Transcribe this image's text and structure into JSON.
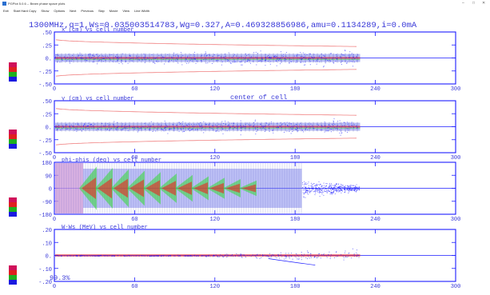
{
  "window": {
    "title": "PGPlot 5.0.6 -- Beam phase space plots",
    "controls": [
      "–",
      "□",
      "✕"
    ]
  },
  "menu": [
    "Exit",
    "Start Hard Copy",
    "Show",
    "Options",
    "Next",
    "Previous",
    "Skip",
    "Movie",
    "View",
    "Line Width"
  ],
  "plot": {
    "header": "1300MHz,q=1,Ws=0.035003514783,Wg=0.327,A=0.469328856986,amu=0.1134289,i=0.0mA",
    "center_label": "center of cell",
    "progress_label": "99.3%",
    "x_ticks": [
      "0",
      "60",
      "120",
      "180",
      "240",
      "300"
    ],
    "x_range": [
      0,
      300
    ],
    "particles_end_cell": 228,
    "panels": [
      {
        "id": "x",
        "label": "x (cm) vs cell number",
        "y_ticks": [
          ".50",
          ".25",
          "0.",
          "-.25",
          "-.50"
        ],
        "y_range": [
          -0.5,
          0.5
        ]
      },
      {
        "id": "y",
        "label": "y (cm) vs cell number",
        "y_ticks": [
          ".50",
          ".25",
          "0.",
          "-.25",
          "-.50"
        ],
        "y_range": [
          -0.5,
          0.5
        ]
      },
      {
        "id": "phi",
        "label": "phi-phis (deg) vs cell number",
        "y_ticks": [
          "180",
          "90",
          "0",
          "-90",
          "-180"
        ],
        "y_range": [
          -180,
          180
        ]
      },
      {
        "id": "w",
        "label": "W-Ws (MeV) vs cell number",
        "y_ticks": [
          ".20",
          ".10",
          "0.",
          "-.10",
          "-.20"
        ],
        "y_range": [
          -0.2,
          0.2
        ]
      }
    ]
  },
  "colors": {
    "axis": "#1c1cff",
    "text": "#3838d8",
    "beam": "#7f86ee",
    "envelope": "#f08080",
    "core_red": "#ee2222",
    "core_green": "#33dd33",
    "legend": [
      "#d0105a",
      "#e02020",
      "#20b020",
      "#1a1ae0"
    ]
  }
}
